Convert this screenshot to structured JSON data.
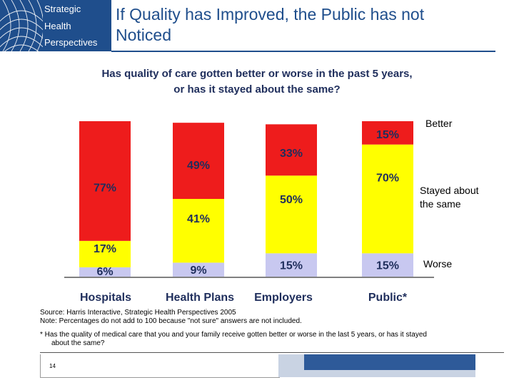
{
  "header": {
    "logo_lines": [
      "Strategic",
      "Health",
      "Perspectives"
    ],
    "title_lines": [
      "If Quality has Improved, the Public has not",
      "Noticed"
    ]
  },
  "question_lines": [
    "Has quality of care gotten better or worse in the past 5 years,",
    "or has it stayed about the same?"
  ],
  "chart_data": {
    "type": "bar",
    "stacked": true,
    "categories": [
      "Hospitals",
      "Health Plans",
      "Employers",
      "Public*"
    ],
    "series": [
      {
        "name": "Worse",
        "values": [
          6,
          9,
          15,
          15
        ],
        "labels": [
          "6%",
          "9%",
          "15%",
          "15%"
        ],
        "color": "#c8c8f0"
      },
      {
        "name": "Stayed about the same",
        "values": [
          17,
          41,
          50,
          70
        ],
        "labels": [
          "17%",
          "41%",
          "50%",
          "70%"
        ],
        "color": "#ffff00"
      },
      {
        "name": "Better",
        "values": [
          77,
          49,
          33,
          15
        ],
        "labels": [
          "77%",
          "49%",
          "33%",
          "15%"
        ],
        "color": "#ee1c1c"
      }
    ],
    "legend": {
      "placement": "right",
      "better": "Better",
      "stayed_lines": [
        "Stayed about",
        "the same"
      ],
      "worse": "Worse"
    },
    "ylim": [
      0,
      100
    ],
    "grid": false
  },
  "source_lines": [
    "Source: Harris Interactive, Strategic Health Perspectives 2005",
    "Note: Percentages do not add to 100 because \"not sure\" answers are not  included."
  ],
  "footnote_lines": [
    "* Has the quality of medical care that you and your family receive gotten better or worse in the last 5 years, or has it stayed",
    "about the same?"
  ],
  "page_number": "14",
  "colors": {
    "brand": "#1f4e8c",
    "label_text": "#1f2e5c"
  }
}
